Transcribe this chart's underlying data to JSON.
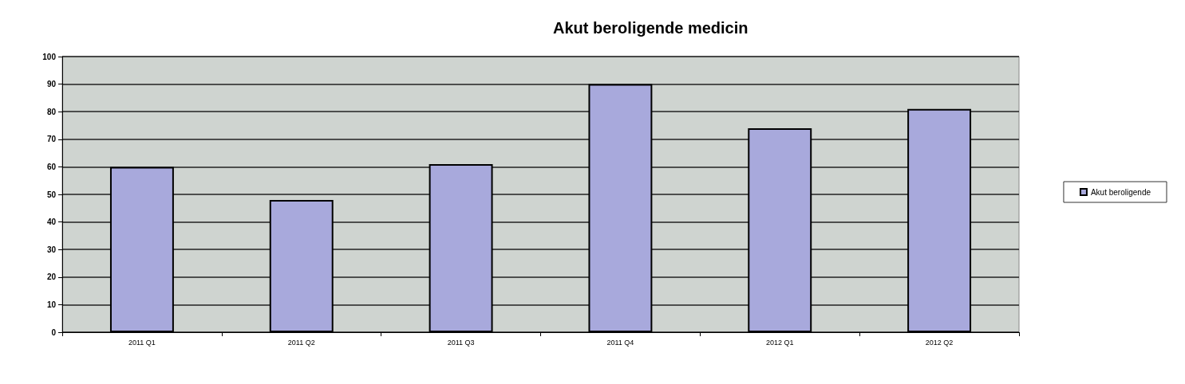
{
  "chart_data": {
    "type": "bar",
    "title": "Akut beroligende medicin",
    "categories": [
      "2011 Q1",
      "2011 Q2",
      "2011 Q3",
      "2011 Q4",
      "2012 Q1",
      "2012 Q2"
    ],
    "series": [
      {
        "name": "Akut beroligende",
        "color": "#a8a9dc",
        "values": [
          60,
          48,
          61,
          90,
          74,
          81
        ]
      }
    ],
    "ylim": [
      0,
      100
    ],
    "yticks": [
      0,
      10,
      20,
      30,
      40,
      50,
      60,
      70,
      80,
      90,
      100
    ],
    "grid": "y",
    "legend": "right"
  }
}
